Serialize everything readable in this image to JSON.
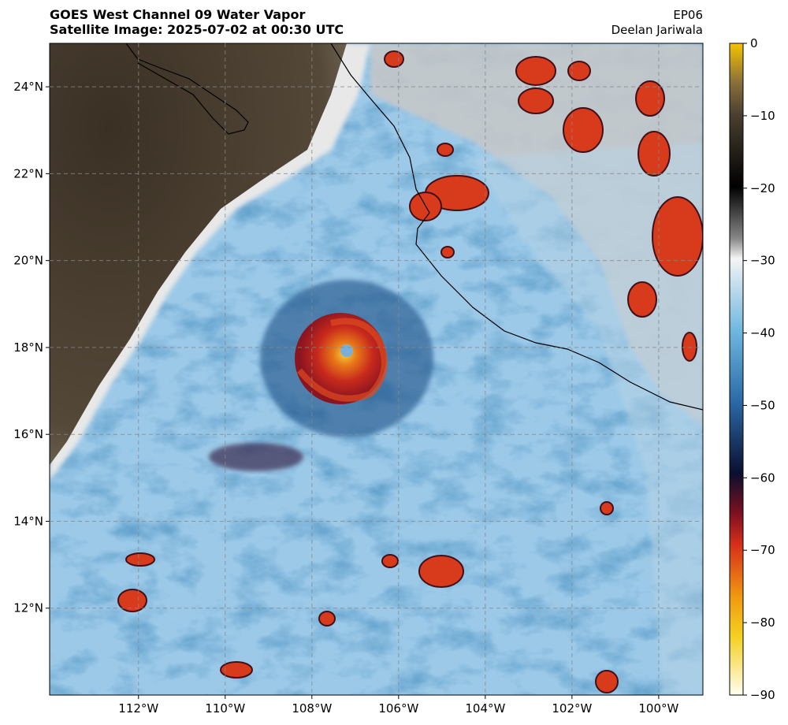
{
  "chart_data": {
    "type": "map",
    "title": "GOES West Channel 09 Water Vapor",
    "subtitle": "Satellite Image: 2025-07-02 at 00:30 UTC",
    "storm": "EP06",
    "author": "Deelan Jariwala",
    "xlim": [
      -114.05,
      -98.98
    ],
    "ylim": [
      10,
      25
    ],
    "xticks": [
      {
        "value": -112,
        "label": "112°W"
      },
      {
        "value": -110,
        "label": "110°W"
      },
      {
        "value": -108,
        "label": "108°W"
      },
      {
        "value": -106,
        "label": "106°W"
      },
      {
        "value": -104,
        "label": "104°W"
      },
      {
        "value": -102,
        "label": "102°W"
      },
      {
        "value": -100,
        "label": "100°W"
      }
    ],
    "yticks": [
      {
        "value": 12,
        "label": "12°N"
      },
      {
        "value": 14,
        "label": "14°N"
      },
      {
        "value": 16,
        "label": "16°N"
      },
      {
        "value": 18,
        "label": "18°N"
      },
      {
        "value": 20,
        "label": "20°N"
      },
      {
        "value": 22,
        "label": "22°N"
      },
      {
        "value": 24,
        "label": "24°N"
      }
    ],
    "grid": true,
    "colorbar": {
      "lim": [
        -90,
        0
      ],
      "ticks": [
        {
          "value": 0,
          "label": "0"
        },
        {
          "value": -10,
          "label": "−10"
        },
        {
          "value": -20,
          "label": "−20"
        },
        {
          "value": -30,
          "label": "−30"
        },
        {
          "value": -40,
          "label": "−40"
        },
        {
          "value": -50,
          "label": "−50"
        },
        {
          "value": -60,
          "label": "−60"
        },
        {
          "value": -70,
          "label": "−70"
        },
        {
          "value": -80,
          "label": "−80"
        },
        {
          "value": -90,
          "label": "−90"
        }
      ]
    }
  }
}
